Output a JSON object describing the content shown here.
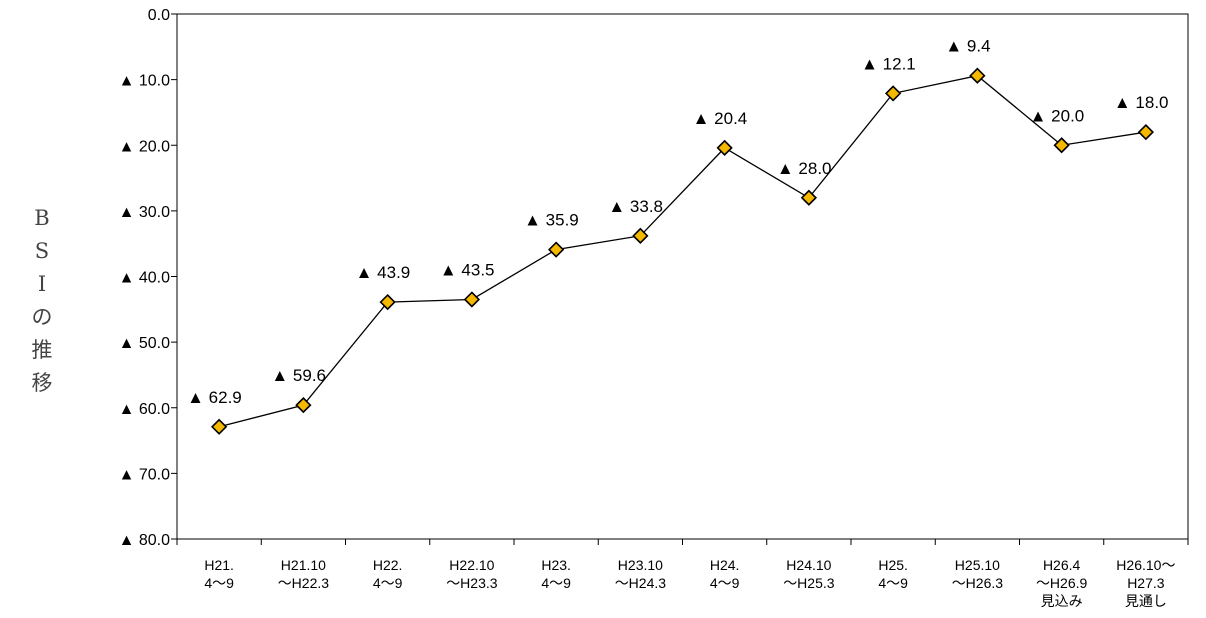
{
  "chart_data": {
    "type": "line",
    "ylabel": "BSIの推移",
    "ylim": [
      0,
      80
    ],
    "y_axis_inverted": true,
    "y_ticks": [
      0,
      10,
      20,
      30,
      40,
      50,
      60,
      70,
      80
    ],
    "y_tick_labels": [
      "0.0",
      "▲ 10.0",
      "▲ 20.0",
      "▲ 30.0",
      "▲ 40.0",
      "▲ 50.0",
      "▲ 60.0",
      "▲ 70.0",
      "▲ 80.0"
    ],
    "categories": [
      [
        "H21.",
        "4～9"
      ],
      [
        "H21.10",
        "～H22.3"
      ],
      [
        "H22.",
        "4～9"
      ],
      [
        "H22.10",
        "～H23.3"
      ],
      [
        "H23.",
        "4～9"
      ],
      [
        "H23.10",
        "～H24.3"
      ],
      [
        "H24.",
        "4～9"
      ],
      [
        "H24.10",
        "～H25.3"
      ],
      [
        "H25.",
        "4～9"
      ],
      [
        "H25.10",
        "～H26.3"
      ],
      [
        "H26.4",
        "～H26.9",
        "見込み"
      ],
      [
        "H26.10～",
        "H27.3",
        "見通し"
      ]
    ],
    "values": [
      -62.9,
      -59.6,
      -43.9,
      -43.5,
      -35.9,
      -33.8,
      -20.4,
      -28.0,
      -12.1,
      -9.4,
      -20.0,
      -18.0
    ],
    "data_labels": [
      "▲ 62.9",
      "▲ 59.6",
      "▲ 43.9",
      "▲ 43.5",
      "▲ 35.9",
      "▲ 33.8",
      "▲ 20.4",
      "▲ 28.0",
      "▲ 12.1",
      "▲ 9.4",
      "▲ 20.0",
      "▲ 18.0"
    ],
    "grid": false,
    "legend": "none",
    "marker": "diamond",
    "colors": {
      "marker_fill": "#F5B800",
      "marker_stroke": "#000000",
      "line": "#000000",
      "axis": "#000000"
    }
  }
}
